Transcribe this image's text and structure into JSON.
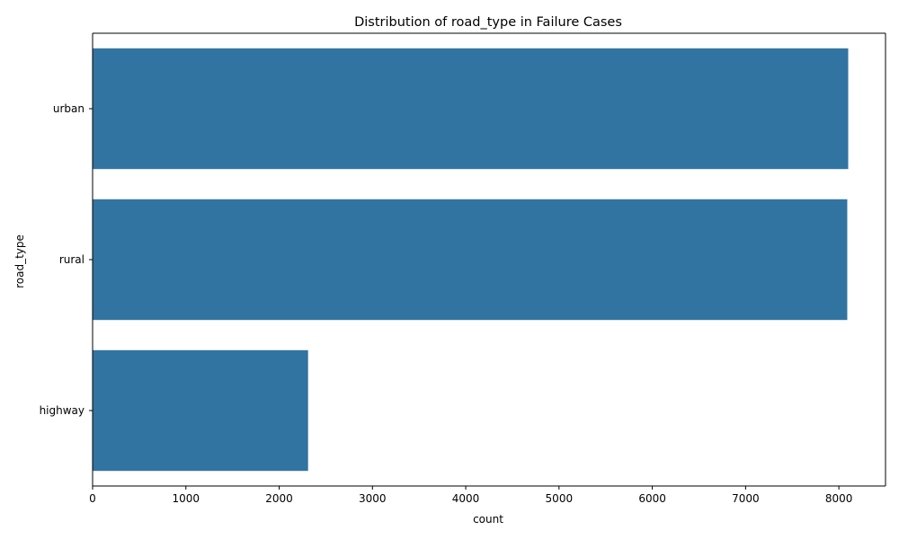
{
  "chart_data": {
    "type": "bar",
    "orientation": "horizontal",
    "title": "Distribution of road_type in Failure Cases",
    "xlabel": "count",
    "ylabel": "road_type",
    "categories": [
      "urban",
      "rural",
      "highway"
    ],
    "values": [
      8100,
      8090,
      2310
    ],
    "xlim": [
      0,
      8500
    ],
    "xticks": [
      0,
      1000,
      2000,
      3000,
      4000,
      5000,
      6000,
      7000,
      8000
    ],
    "grid": false,
    "bar_color": "#3274a1"
  }
}
